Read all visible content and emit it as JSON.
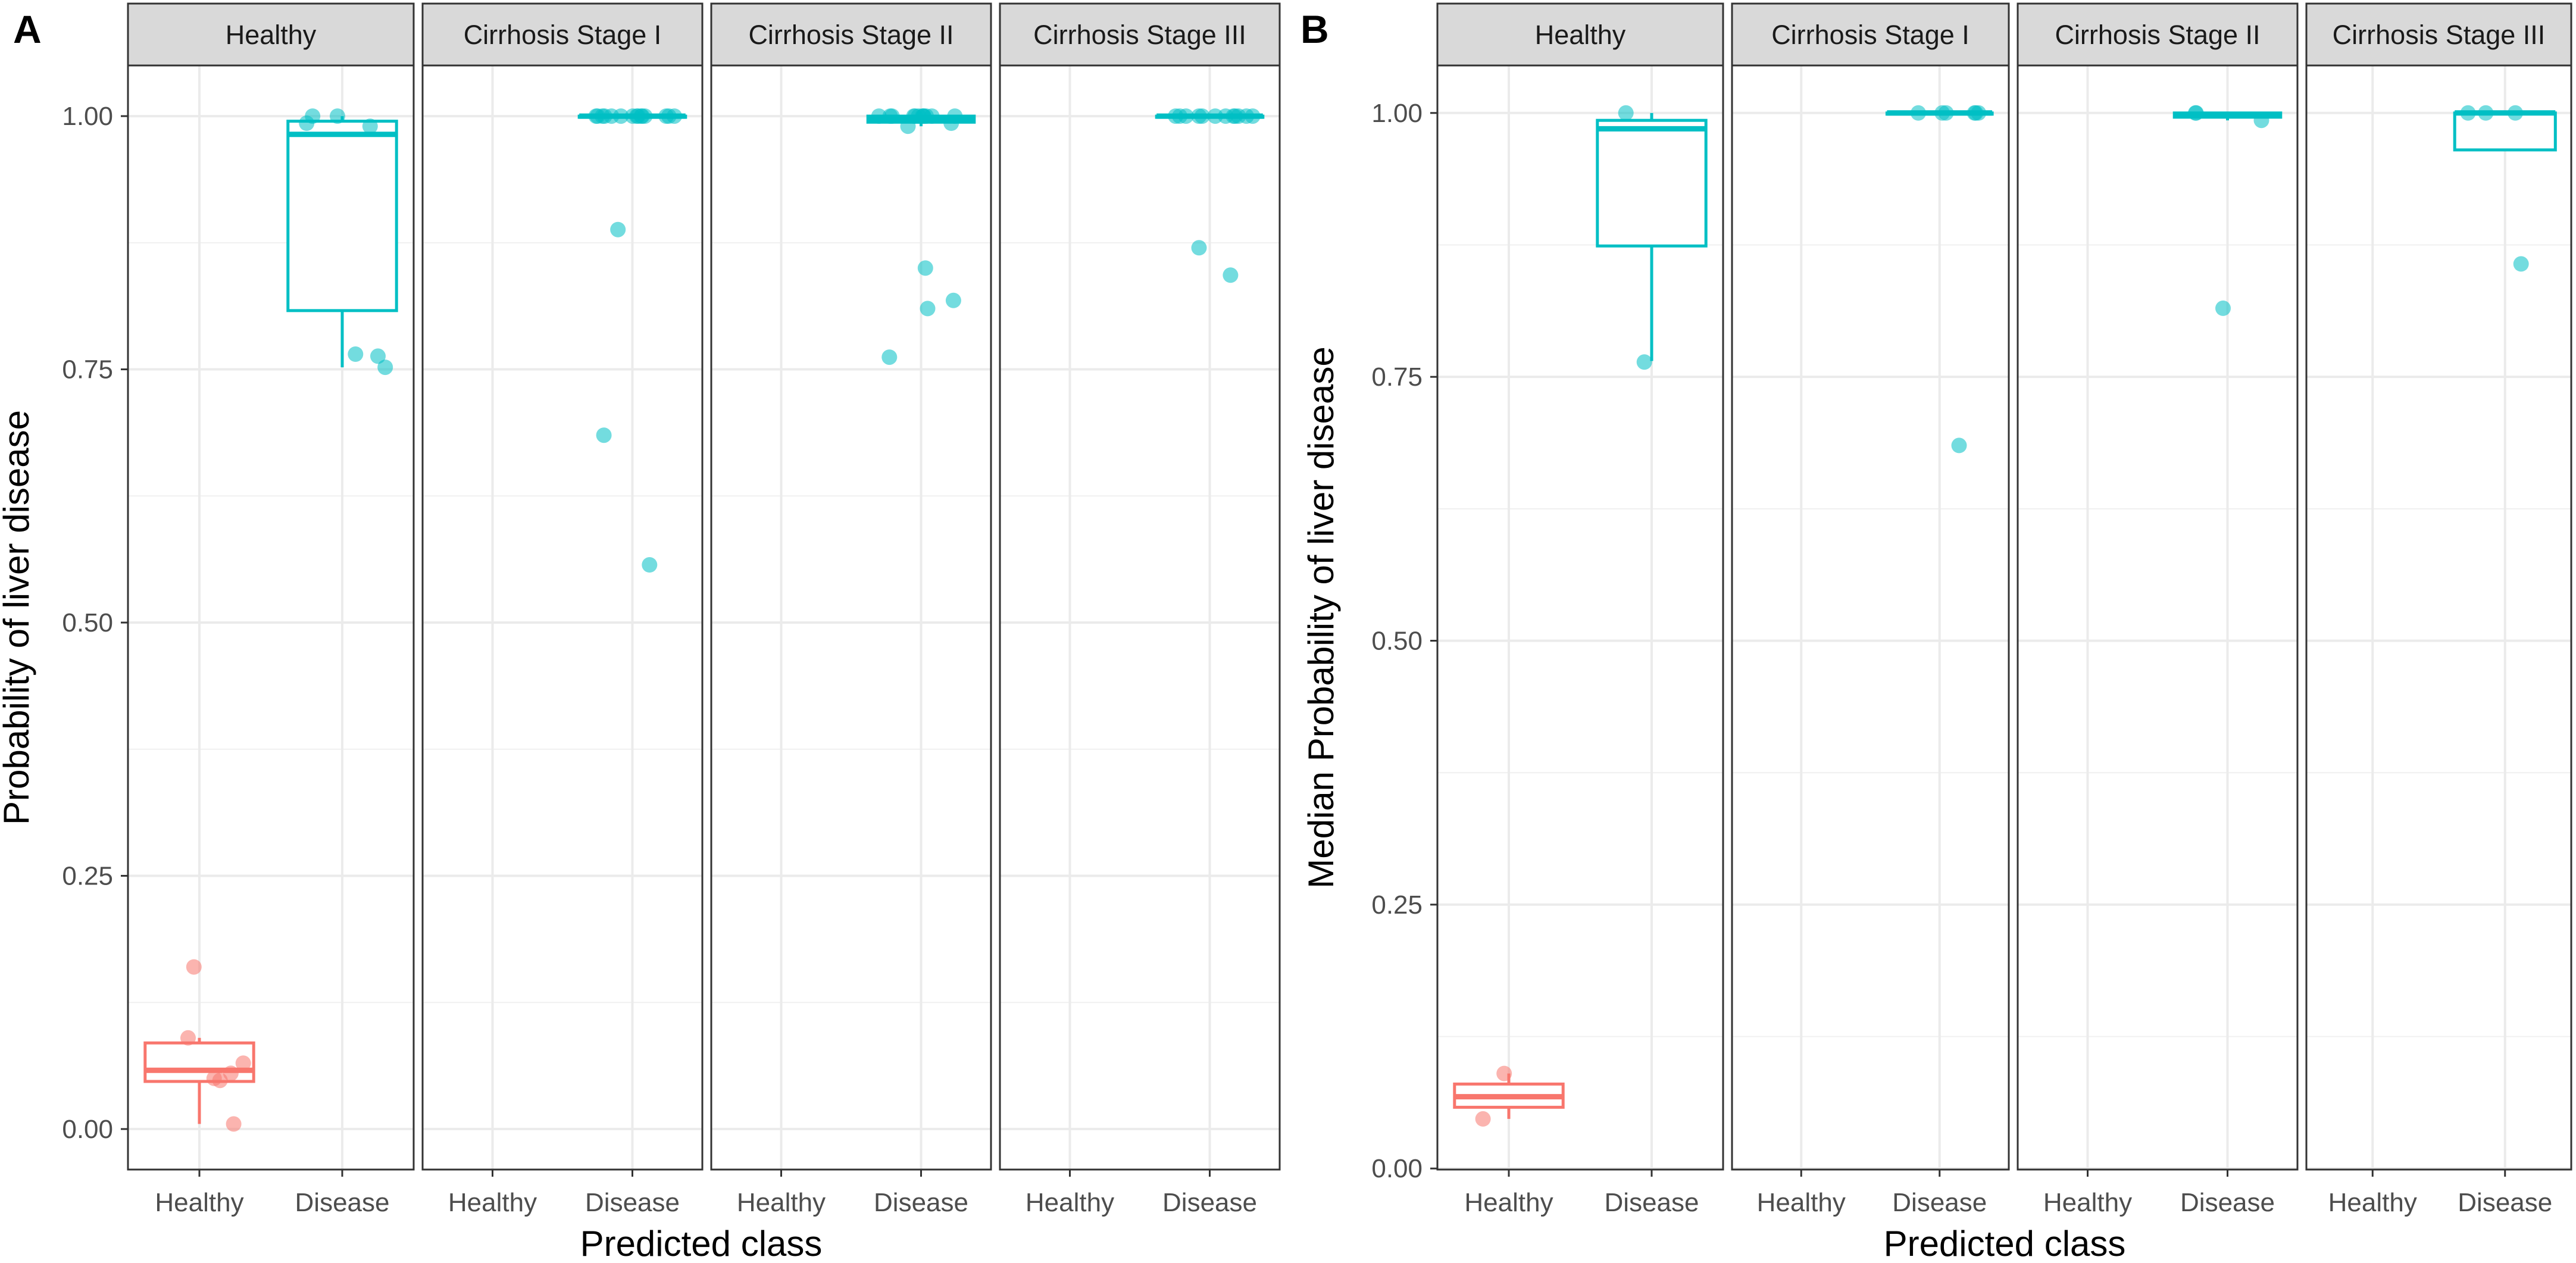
{
  "chart_data": [
    {
      "type": "boxplot",
      "tag": "A",
      "ylabel": "Probability of liver disease",
      "xlabel": "Predicted class",
      "ylim": [
        -0.04,
        1.05
      ],
      "yticks": [
        "0.00",
        "0.25",
        "0.50",
        "0.75",
        "1.00"
      ],
      "ytick_values": [
        0,
        0.25,
        0.5,
        0.75,
        1.0
      ],
      "categories": [
        "Healthy",
        "Disease"
      ],
      "facets": [
        {
          "label": "Healthy",
          "groups": [
            {
              "category": "Healthy",
              "color": "#F8766D",
              "box": {
                "q1": 0.047,
                "median": 0.058,
                "q3": 0.085,
                "whisker_low": 0.005,
                "whisker_high": 0.09
              },
              "points": [
                0.065,
                0.055,
                0.09,
                0.05,
                0.048,
                0.16,
                0.005
              ]
            },
            {
              "category": "Disease",
              "color": "#00BFC4",
              "box": {
                "q1": 0.808,
                "median": 0.982,
                "q3": 0.995,
                "whisker_low": 0.752,
                "whisker_high": 1.0
              },
              "points": [
                0.752,
                1.0,
                0.993,
                0.99,
                1.0,
                0.765,
                0.763
              ]
            }
          ]
        },
        {
          "label": "Cirrhosis Stage I",
          "groups": [
            {
              "category": "Healthy",
              "color": "#F8766D",
              "box": null,
              "points": []
            },
            {
              "category": "Disease",
              "color": "#00BFC4",
              "box": {
                "q1": 0.999,
                "median": 1.0,
                "q3": 1.0,
                "whisker_low": 0.998,
                "whisker_high": 1.0
              },
              "points": [
                1.0,
                1.0,
                1.0,
                1.0,
                1.0,
                1.0,
                1.0,
                1.0,
                1.0,
                1.0,
                1.0,
                1.0,
                1.0,
                1.0,
                1.0,
                0.888,
                0.685,
                0.557
              ]
            }
          ]
        },
        {
          "label": "Cirrhosis Stage II",
          "groups": [
            {
              "category": "Healthy",
              "color": "#F8766D",
              "box": null,
              "points": []
            },
            {
              "category": "Disease",
              "color": "#00BFC4",
              "box": {
                "q1": 0.994,
                "median": 0.998,
                "q3": 1.0,
                "whisker_low": 0.99,
                "whisker_high": 1.0
              },
              "points": [
                1.0,
                1.0,
                1.0,
                1.0,
                1.0,
                1.0,
                1.0,
                1.0,
                1.0,
                1.0,
                1.0,
                1.0,
                0.99,
                0.993,
                0.85,
                0.818,
                0.762,
                0.81
              ]
            }
          ]
        },
        {
          "label": "Cirrhosis Stage III",
          "groups": [
            {
              "category": "Healthy",
              "color": "#F8766D",
              "box": null,
              "points": []
            },
            {
              "category": "Disease",
              "color": "#00BFC4",
              "box": {
                "q1": 0.999,
                "median": 1.0,
                "q3": 1.0,
                "whisker_low": 0.998,
                "whisker_high": 1.0
              },
              "points": [
                1.0,
                1.0,
                1.0,
                1.0,
                1.0,
                1.0,
                1.0,
                1.0,
                1.0,
                1.0,
                1.0,
                1.0,
                0.87,
                0.843
              ]
            }
          ]
        }
      ]
    },
    {
      "type": "boxplot",
      "tag": "B",
      "ylabel": "Median Probability of liver disease",
      "xlabel": "Predicted class",
      "ylim": [
        -0.001,
        1.045
      ],
      "yticks": [
        "0.00",
        "0.25",
        "0.50",
        "0.75",
        "1.00"
      ],
      "ytick_values": [
        0,
        0.25,
        0.5,
        0.75,
        1.0
      ],
      "categories": [
        "Healthy",
        "Disease"
      ],
      "facets": [
        {
          "label": "Healthy",
          "groups": [
            {
              "category": "Healthy",
              "color": "#F8766D",
              "box": {
                "q1": 0.058,
                "median": 0.068,
                "q3": 0.08,
                "whisker_low": 0.047,
                "whisker_high": 0.09
              },
              "points": [
                0.047,
                0.09
              ]
            },
            {
              "category": "Disease",
              "color": "#00BFC4",
              "box": {
                "q1": 0.874,
                "median": 0.985,
                "q3": 0.993,
                "whisker_low": 0.765,
                "whisker_high": 1.0
              },
              "points": [
                1.0,
                0.764
              ]
            }
          ]
        },
        {
          "label": "Cirrhosis Stage I",
          "groups": [
            {
              "category": "Healthy",
              "color": "#F8766D",
              "box": null,
              "points": []
            },
            {
              "category": "Disease",
              "color": "#00BFC4",
              "box": {
                "q1": 0.999,
                "median": 1.0,
                "q3": 1.0,
                "whisker_low": 0.998,
                "whisker_high": 1.0
              },
              "points": [
                1.0,
                1.0,
                1.0,
                1.0,
                1.0,
                1.0,
                0.685
              ]
            }
          ]
        },
        {
          "label": "Cirrhosis Stage II",
          "groups": [
            {
              "category": "Healthy",
              "color": "#F8766D",
              "box": null,
              "points": []
            },
            {
              "category": "Disease",
              "color": "#00BFC4",
              "box": {
                "q1": 0.996,
                "median": 0.998,
                "q3": 1.0,
                "whisker_low": 0.993,
                "whisker_high": 1.0
              },
              "points": [
                1.0,
                1.0,
                0.993,
                0.815
              ]
            }
          ]
        },
        {
          "label": "Cirrhosis Stage III",
          "groups": [
            {
              "category": "Healthy",
              "color": "#F8766D",
              "box": null,
              "points": []
            },
            {
              "category": "Disease",
              "color": "#00BFC4",
              "box": {
                "q1": 0.965,
                "median": 1.0,
                "q3": 1.0,
                "whisker_low": 0.965,
                "whisker_high": 1.0
              },
              "points": [
                1.0,
                1.0,
                1.0,
                0.857
              ]
            }
          ]
        }
      ]
    }
  ]
}
